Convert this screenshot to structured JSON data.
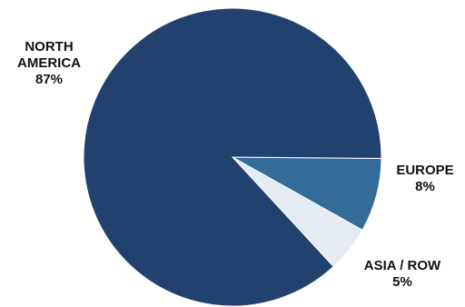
{
  "chart_data": {
    "type": "pie",
    "slices": [
      {
        "label": "NORTH AMERICA",
        "value": 87,
        "value_label": "87%",
        "color": "#21426f"
      },
      {
        "label": "EUROPE",
        "value": 8,
        "value_label": "8%",
        "color": "#336b99"
      },
      {
        "label": "ASIA / ROW",
        "value": 5,
        "value_label": "5%",
        "color": "#e4ebf3"
      }
    ],
    "title": "",
    "legend": "none",
    "start_angle_deg": 0.5
  }
}
